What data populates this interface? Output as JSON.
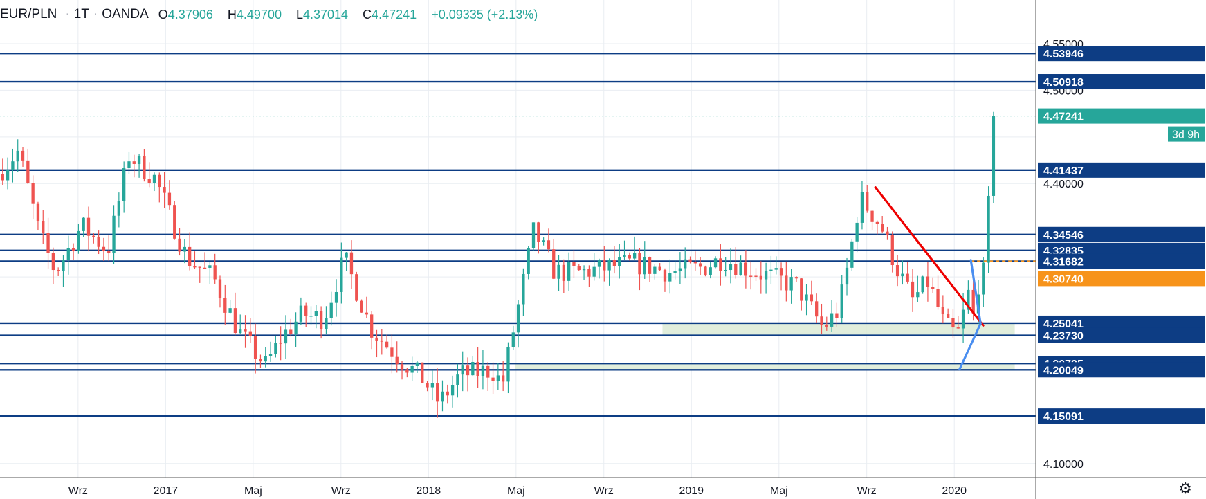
{
  "header": {
    "symbol": "EUR/PLN",
    "interval": "1T",
    "source": "OANDA",
    "open": "4.37906",
    "high": "4.49700",
    "low": "4.37014",
    "close": "4.47241",
    "change": "+0.09335 (+2.13%)"
  },
  "icons": {
    "settings": "gear-icon"
  },
  "colors": {
    "up": "#26a69a",
    "down": "#ef5350",
    "level_line": "#0d3d84",
    "grid": "#e9edf2",
    "trend_red": "#ee0000",
    "trend_blue": "#4a8ef0",
    "orange": "#f7931a",
    "zone": "#dcebd6"
  },
  "chart_data": {
    "type": "candlestick",
    "title": "EUR/PLN · 1T · OANDA",
    "ylim": [
      4.085,
      4.57
    ],
    "y_ticks": [
      "4.10000",
      "4.40000",
      "4.50000",
      "4.55000"
    ],
    "x_ticks": [
      "Wrz",
      "2017",
      "Maj",
      "Wrz",
      "2018",
      "Maj",
      "Wrz",
      "2019",
      "Maj",
      "Wrz",
      "2020"
    ],
    "x_tick_times": [
      2016.667,
      2017.0,
      2017.333,
      2017.667,
      2018.0,
      2018.333,
      2018.667,
      2019.0,
      2019.333,
      2019.667,
      2020.0
    ],
    "time_range": [
      2016.37,
      2020.31
    ],
    "grid": true,
    "horizontal_levels": [
      "4.53946",
      "4.50918",
      "4.41437",
      "4.34546",
      "4.32835",
      "4.31682",
      "4.25041",
      "4.23730",
      "4.20725",
      "4.20049",
      "4.15091"
    ],
    "last_price": "4.47241",
    "countdown": "3d 9h",
    "orange_level": "4.30740",
    "zones": [
      {
        "t0": 2018.89,
        "t1": 2020.23,
        "low": 4.2373,
        "high": 4.2504
      },
      {
        "t0": 2018.33,
        "t1": 2020.23,
        "low": 4.2005,
        "high": 4.2073
      }
    ],
    "trendlines": [
      {
        "name": "red",
        "t0": 2019.7,
        "p0": 4.396,
        "t1": 2020.11,
        "p1": 4.248
      },
      {
        "name": "blue",
        "t0": 2020.02,
        "p0": 4.201,
        "t1": 2020.1,
        "p1": 4.25
      },
      {
        "name": "blue",
        "t0": 2020.063,
        "p0": 4.318,
        "t1": 2020.1,
        "p1": 4.25
      }
    ],
    "anchors": [
      [
        2016.38,
        4.41
      ],
      [
        2016.46,
        4.435
      ],
      [
        2016.54,
        4.345
      ],
      [
        2016.6,
        4.305
      ],
      [
        2016.7,
        4.355
      ],
      [
        2016.8,
        4.328
      ],
      [
        2016.88,
        4.43
      ],
      [
        2016.98,
        4.405
      ],
      [
        2017.1,
        4.32
      ],
      [
        2017.2,
        4.3
      ],
      [
        2017.3,
        4.24
      ],
      [
        2017.4,
        4.205
      ],
      [
        2017.46,
        4.235
      ],
      [
        2017.54,
        4.26
      ],
      [
        2017.62,
        4.255
      ],
      [
        2017.7,
        4.32
      ],
      [
        2017.8,
        4.245
      ],
      [
        2017.9,
        4.215
      ],
      [
        2018.0,
        4.19
      ],
      [
        2018.06,
        4.165
      ],
      [
        2018.14,
        4.195
      ],
      [
        2018.26,
        4.2
      ],
      [
        2018.3,
        4.185
      ],
      [
        2018.34,
        4.24
      ],
      [
        2018.42,
        4.35
      ],
      [
        2018.5,
        4.305
      ],
      [
        2018.6,
        4.305
      ],
      [
        2018.7,
        4.31
      ],
      [
        2018.8,
        4.315
      ],
      [
        2018.94,
        4.305
      ],
      [
        2019.06,
        4.31
      ],
      [
        2019.14,
        4.32
      ],
      [
        2019.22,
        4.31
      ],
      [
        2019.32,
        4.3
      ],
      [
        2019.42,
        4.29
      ],
      [
        2019.52,
        4.245
      ],
      [
        2019.58,
        4.265
      ],
      [
        2019.62,
        4.32
      ],
      [
        2019.66,
        4.385
      ],
      [
        2019.7,
        4.37
      ],
      [
        2019.74,
        4.355
      ],
      [
        2019.8,
        4.31
      ],
      [
        2019.86,
        4.275
      ],
      [
        2019.92,
        4.295
      ],
      [
        2019.98,
        4.25
      ],
      [
        2020.01,
        4.24
      ],
      [
        2020.04,
        4.24
      ],
      [
        2020.07,
        4.285
      ],
      [
        2020.09,
        4.255
      ],
      [
        2020.12,
        4.31
      ],
      [
        2020.135,
        4.3
      ],
      [
        2020.15,
        4.38
      ],
      [
        2020.165,
        4.47
      ]
    ],
    "candles_note": "weekly OHLC candles approximated from the anchor path"
  }
}
